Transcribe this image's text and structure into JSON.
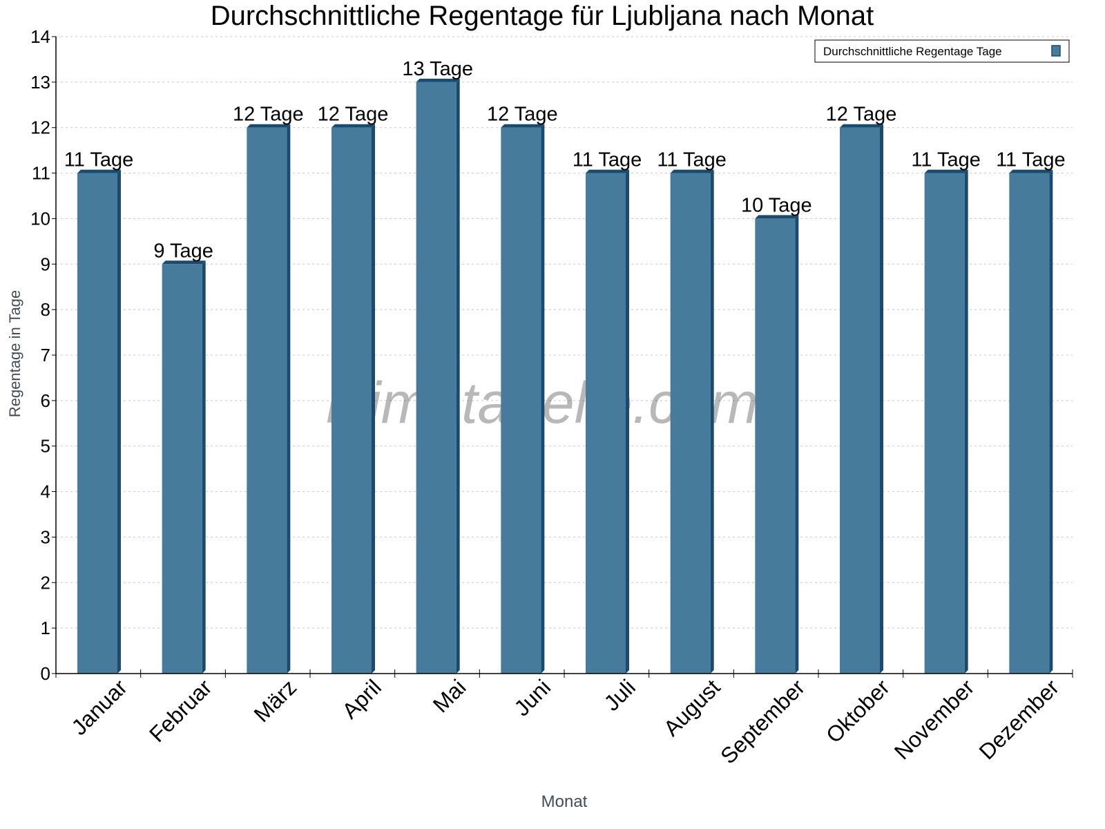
{
  "chart_data": {
    "type": "bar",
    "title": "Durchschnittliche Regentage für Ljubljana nach Monat",
    "xlabel": "Monat",
    "ylabel": "Regentage in Tage",
    "categories": [
      "Januar",
      "Februar",
      "März",
      "April",
      "Mai",
      "Juni",
      "Juli",
      "August",
      "September",
      "Oktober",
      "November",
      "Dezember"
    ],
    "series": [
      {
        "name": "Durchschnittliche Regentage Tage",
        "values": [
          11,
          9,
          12,
          12,
          13,
          12,
          11,
          11,
          10,
          12,
          11,
          11
        ],
        "color": "#467b9c",
        "side_color": "#1a4b6e"
      }
    ],
    "data_labels": [
      "11 Tage",
      "9 Tage",
      "12 Tage",
      "12 Tage",
      "13 Tage",
      "12 Tage",
      "11 Tage",
      "11 Tage",
      "10 Tage",
      "12 Tage",
      "11 Tage",
      "11 Tage"
    ],
    "ylim": [
      0,
      14
    ],
    "yticks": [
      0,
      1,
      2,
      3,
      4,
      5,
      6,
      7,
      8,
      9,
      10,
      11,
      12,
      13,
      14
    ],
    "grid": true,
    "legend_position": "top-right",
    "watermark": "klimatabelle.com"
  }
}
